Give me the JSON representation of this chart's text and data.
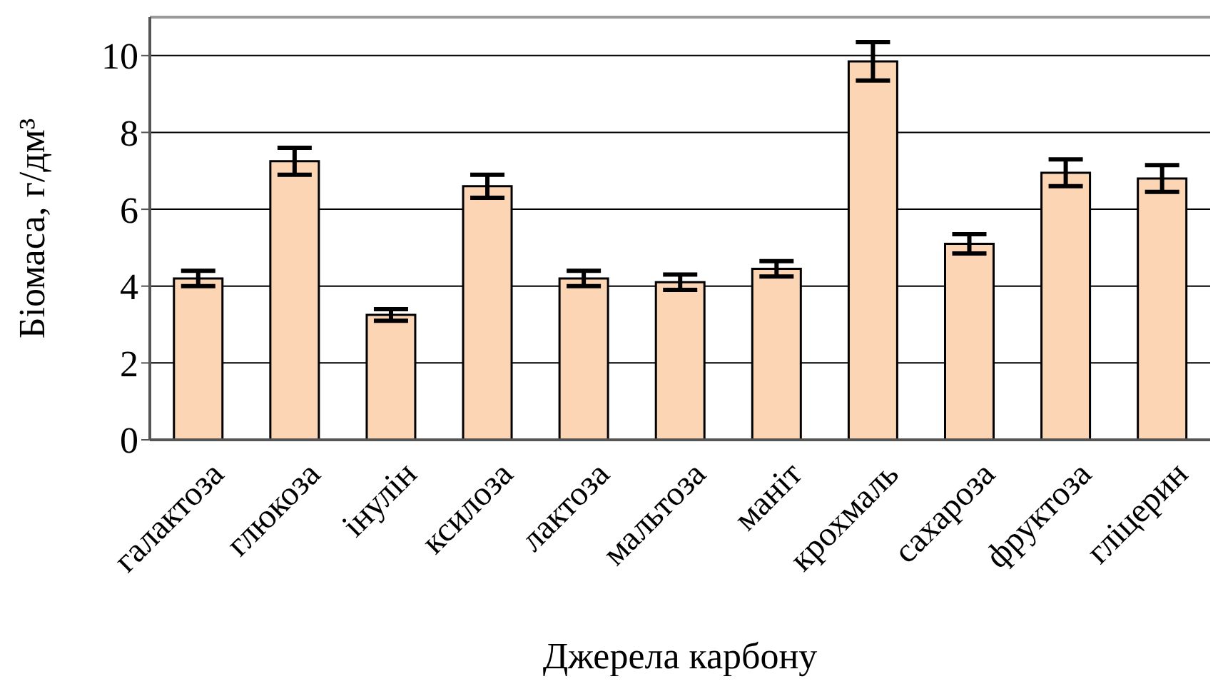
{
  "chart_data": {
    "type": "bar",
    "xlabel": "Джерела карбону",
    "ylabel": "Біомаса, г/дм³",
    "categories": [
      "галактоза",
      "глюкоза",
      "інулін",
      "ксилоза",
      "лактоза",
      "мальтоза",
      "маніт",
      "крохмаль",
      "сахароза",
      "фруктоза",
      "гліцерин"
    ],
    "values": [
      4.2,
      7.25,
      3.25,
      6.6,
      4.2,
      4.1,
      4.45,
      9.85,
      5.1,
      6.95,
      6.8
    ],
    "errors": [
      0.2,
      0.35,
      0.15,
      0.3,
      0.2,
      0.2,
      0.2,
      0.5,
      0.25,
      0.35,
      0.35
    ],
    "color": "#fcd5b4",
    "ylim": [
      0,
      11
    ],
    "yticks": [
      0,
      2,
      4,
      6,
      8,
      10
    ],
    "grid": "y"
  }
}
